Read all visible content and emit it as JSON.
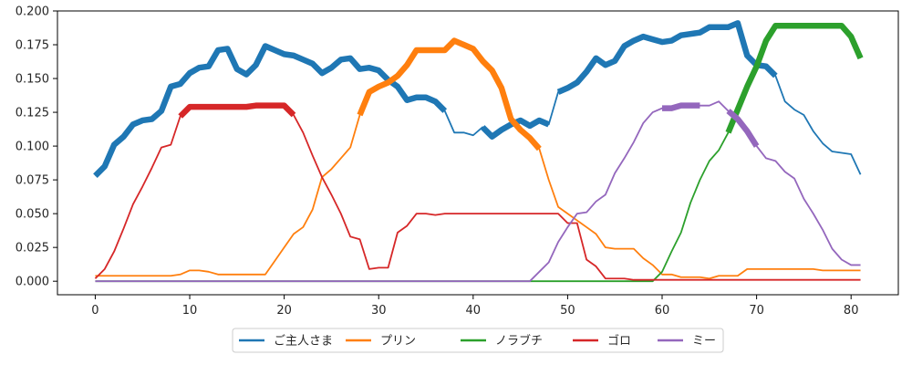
{
  "chart_data": {
    "type": "line",
    "title": "",
    "xlabel": "",
    "ylabel": "",
    "xlim": [
      -4,
      85
    ],
    "ylim": [
      -0.01,
      0.2
    ],
    "x_ticks": [
      0,
      10,
      20,
      30,
      40,
      50,
      60,
      70,
      80
    ],
    "y_ticks": [
      0.0,
      0.025,
      0.05,
      0.075,
      0.1,
      0.125,
      0.15,
      0.175,
      0.2
    ],
    "y_tick_labels": [
      "0.000",
      "0.025",
      "0.050",
      "0.075",
      "0.100",
      "0.125",
      "0.150",
      "0.175",
      "0.200"
    ],
    "grid": false,
    "legend_position": "bottom-center",
    "series": [
      {
        "name": "ご主人さま",
        "color": "#1f77b4",
        "values": [
          0.078,
          0.085,
          0.101,
          0.107,
          0.116,
          0.119,
          0.12,
          0.126,
          0.144,
          0.146,
          0.154,
          0.158,
          0.159,
          0.171,
          0.172,
          0.157,
          0.153,
          0.16,
          0.174,
          0.171,
          0.168,
          0.167,
          0.164,
          0.161,
          0.154,
          0.158,
          0.164,
          0.165,
          0.157,
          0.158,
          0.156,
          0.149,
          0.144,
          0.134,
          0.136,
          0.136,
          0.133,
          0.126,
          0.11,
          0.11,
          0.108,
          0.114,
          0.107,
          0.112,
          0.116,
          0.119,
          0.115,
          0.119,
          0.116,
          0.14,
          0.143,
          0.147,
          0.155,
          0.165,
          0.16,
          0.163,
          0.174,
          0.178,
          0.181,
          0.179,
          0.177,
          0.178,
          0.182,
          0.183,
          0.184,
          0.188,
          0.188,
          0.188,
          0.191,
          0.167,
          0.16,
          0.159,
          0.152,
          0.133,
          0.127,
          0.123,
          0.111,
          0.102,
          0.096,
          0.095,
          0.094,
          0.079
        ],
        "highlight_ranges": [
          [
            0,
            37
          ],
          [
            41,
            48
          ],
          [
            49,
            72
          ]
        ]
      },
      {
        "name": "プリン",
        "color": "#ff7f0e",
        "values": [
          0.004,
          0.004,
          0.004,
          0.004,
          0.004,
          0.004,
          0.004,
          0.004,
          0.004,
          0.005,
          0.008,
          0.008,
          0.007,
          0.005,
          0.005,
          0.005,
          0.005,
          0.005,
          0.005,
          0.015,
          0.025,
          0.035,
          0.04,
          0.053,
          0.077,
          0.083,
          0.091,
          0.099,
          0.123,
          0.14,
          0.144,
          0.147,
          0.152,
          0.16,
          0.171,
          0.171,
          0.171,
          0.171,
          0.178,
          0.175,
          0.172,
          0.163,
          0.156,
          0.143,
          0.12,
          0.112,
          0.106,
          0.098,
          0.075,
          0.055,
          0.05,
          0.045,
          0.04,
          0.035,
          0.025,
          0.024,
          0.024,
          0.024,
          0.017,
          0.012,
          0.005,
          0.005,
          0.003,
          0.003,
          0.003,
          0.002,
          0.004,
          0.004,
          0.004,
          0.009,
          0.009,
          0.009,
          0.009,
          0.009,
          0.009,
          0.009,
          0.009,
          0.008,
          0.008,
          0.008,
          0.008,
          0.008
        ],
        "highlight_ranges": [
          [
            28,
            47
          ]
        ]
      },
      {
        "name": "ノラブチ",
        "color": "#2ca02c",
        "values": [
          0,
          0,
          0,
          0,
          0,
          0,
          0,
          0,
          0,
          0,
          0,
          0,
          0,
          0,
          0,
          0,
          0,
          0,
          0,
          0,
          0,
          0,
          0,
          0,
          0,
          0,
          0,
          0,
          0,
          0,
          0,
          0,
          0,
          0,
          0,
          0,
          0,
          0,
          0,
          0,
          0,
          0,
          0,
          0,
          0,
          0,
          0,
          0,
          0,
          0,
          0,
          0,
          0,
          0,
          0,
          0,
          0,
          0,
          0,
          0,
          0.007,
          0.022,
          0.036,
          0.058,
          0.075,
          0.089,
          0.097,
          0.11,
          0.127,
          0.144,
          0.159,
          0.178,
          0.189,
          0.189,
          0.189,
          0.189,
          0.189,
          0.189,
          0.189,
          0.189,
          0.181,
          0.165
        ],
        "highlight_ranges": [
          [
            67,
            81
          ]
        ]
      },
      {
        "name": "ゴロ",
        "color": "#d62728",
        "values": [
          0.002,
          0.009,
          0.022,
          0.039,
          0.057,
          0.07,
          0.084,
          0.099,
          0.101,
          0.122,
          0.129,
          0.129,
          0.129,
          0.129,
          0.129,
          0.129,
          0.129,
          0.13,
          0.13,
          0.13,
          0.13,
          0.123,
          0.11,
          0.093,
          0.077,
          0.064,
          0.05,
          0.033,
          0.031,
          0.009,
          0.01,
          0.01,
          0.036,
          0.041,
          0.05,
          0.05,
          0.049,
          0.05,
          0.05,
          0.05,
          0.05,
          0.05,
          0.05,
          0.05,
          0.05,
          0.05,
          0.05,
          0.05,
          0.05,
          0.05,
          0.043,
          0.043,
          0.016,
          0.011,
          0.002,
          0.002,
          0.002,
          0.001,
          0.001,
          0.001,
          0.001,
          0.001,
          0.001,
          0.001,
          0.001,
          0.001,
          0.001,
          0.001,
          0.001,
          0.001,
          0.001,
          0.001,
          0.001,
          0.001,
          0.001,
          0.001,
          0.001,
          0.001,
          0.001,
          0.001,
          0.001,
          0.001
        ],
        "highlight_ranges": [
          [
            9,
            21
          ]
        ]
      },
      {
        "name": "ミー",
        "color": "#9467bd",
        "values": [
          0,
          0,
          0,
          0,
          0,
          0,
          0,
          0,
          0,
          0,
          0,
          0,
          0,
          0,
          0,
          0,
          0,
          0,
          0,
          0,
          0,
          0,
          0,
          0,
          0,
          0,
          0,
          0,
          0,
          0,
          0,
          0,
          0,
          0,
          0,
          0,
          0,
          0,
          0,
          0,
          0,
          0,
          0,
          0,
          0,
          0,
          0,
          0.007,
          0.014,
          0.029,
          0.04,
          0.05,
          0.051,
          0.059,
          0.064,
          0.08,
          0.091,
          0.103,
          0.117,
          0.125,
          0.128,
          0.128,
          0.13,
          0.13,
          0.13,
          0.13,
          0.133,
          0.126,
          0.12,
          0.111,
          0.1,
          0.091,
          0.089,
          0.081,
          0.076,
          0.061,
          0.05,
          0.038,
          0.024,
          0.016,
          0.012,
          0.012
        ],
        "highlight_ranges": [
          [
            60,
            64
          ],
          [
            67,
            70
          ]
        ]
      }
    ]
  }
}
